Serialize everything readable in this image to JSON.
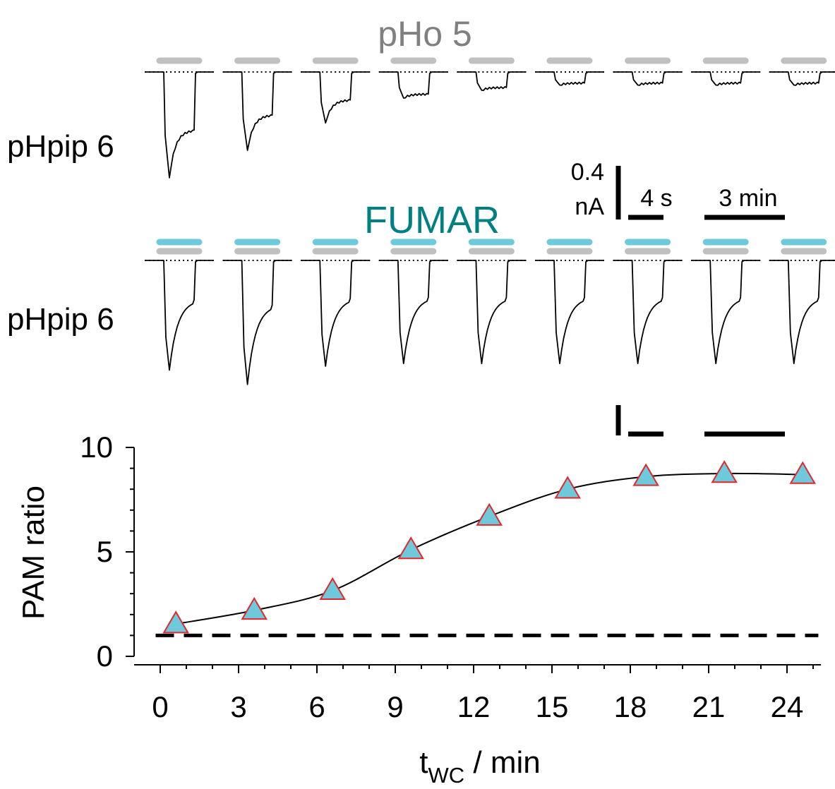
{
  "panel_a": {
    "condition_label": "pHo 5",
    "row_label": "pHpip 6",
    "condition_color": "#808080",
    "bar_color": "#c0c0c0",
    "trace_peaks_nA": [
      0.81,
      0.6,
      0.39,
      0.2,
      0.14,
      0.1,
      0.1,
      0.1,
      0.1
    ]
  },
  "panel_b": {
    "condition_label": "FUMAR",
    "row_label": "pHpip 6",
    "condition_color": "#008080",
    "bar_color_top": "#6ec9da",
    "bar_color_bottom": "#c0c0c0",
    "trace_peaks_nA": [
      0.84,
      0.95,
      0.81,
      0.79,
      0.79,
      0.79,
      0.79,
      0.79,
      0.79
    ]
  },
  "scale_bars": {
    "current_value": "0.4",
    "current_unit": "nA",
    "time_fast": "4 s",
    "time_slow": "3 min"
  },
  "chart_data": {
    "type": "line",
    "x": [
      0.6,
      3.6,
      6.6,
      9.6,
      12.6,
      15.6,
      18.6,
      21.6,
      24.6
    ],
    "series": [
      {
        "values": [
          1.55,
          2.2,
          3.15,
          5.1,
          6.7,
          8.0,
          8.6,
          8.75,
          8.7
        ]
      }
    ],
    "reference_line": {
      "y": 1,
      "style": "dashed"
    },
    "xlabel_main": "t",
    "xlabel_sub": "WC",
    "xlabel_unit": " / min",
    "ylabel": "PAM ratio",
    "xlim": [
      -0.5,
      25.5
    ],
    "ylim": [
      0,
      10
    ],
    "xticks": [
      "0",
      "3",
      "6",
      "9",
      "12",
      "15",
      "18",
      "21",
      "24"
    ],
    "yticks": [
      "0",
      "5",
      "10"
    ],
    "marker": "triangle",
    "marker_fill": "#6ec9da",
    "marker_edge": "#e0282d",
    "grid": false
  }
}
